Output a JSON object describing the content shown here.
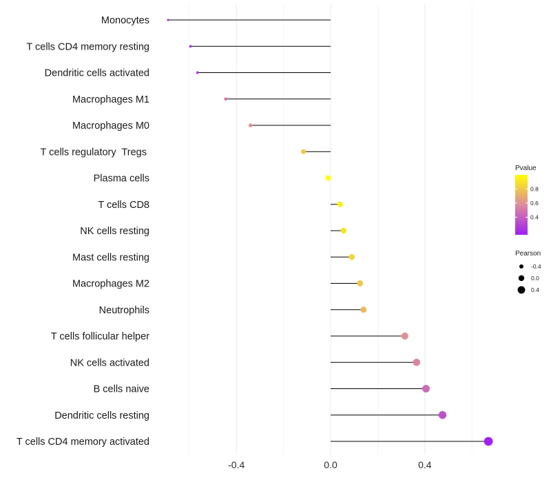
{
  "chart_data": {
    "type": "lollipop",
    "categories": [
      "Monocytes",
      "T cells CD4 memory resting",
      "Dendritic cells activated",
      "Macrophages M1",
      "Macrophages M0",
      "T cells regulatory  Tregs ",
      "Plasma cells",
      "T cells CD8",
      "NK cells resting",
      "Mast cells resting",
      "Macrophages M2",
      "Neutrophils",
      "T cells follicular helper",
      "NK cells activated",
      "B cells naive",
      "Dendritic cells resting",
      "T cells CD4 memory activated"
    ],
    "pearson": [
      -0.69,
      -0.595,
      -0.565,
      -0.445,
      -0.34,
      -0.115,
      -0.01,
      0.04,
      0.055,
      0.09,
      0.125,
      0.14,
      0.315,
      0.365,
      0.405,
      0.475,
      0.67
    ],
    "pvalue": [
      0.1,
      0.2,
      0.25,
      0.5,
      0.6,
      0.8,
      1.0,
      0.95,
      0.9,
      0.85,
      0.8,
      0.75,
      0.6,
      0.55,
      0.45,
      0.35,
      0.1
    ],
    "x_ticks": [
      -0.4,
      0.0,
      0.4
    ],
    "x_tick_labels": [
      "-0.4",
      "0.0",
      "0.4"
    ],
    "xlim": [
      -0.8,
      0.85
    ],
    "xlabel": "",
    "ylabel": "",
    "title": "",
    "grid": true,
    "legend_color": {
      "title": "Pvalue",
      "ticks": [
        0.8,
        0.6,
        0.4
      ],
      "tick_labels": [
        "0.8",
        "0.6",
        "0.4"
      ],
      "range": [
        0.15,
        1.0
      ],
      "low_color": "#a020f0",
      "mid_color": "#de8a9e",
      "high_color": "#ffff00",
      "placement": "right"
    },
    "legend_size": {
      "title": "Pearson",
      "values": [
        -0.4,
        0.0,
        0.4
      ],
      "labels": [
        "-0.4",
        "0.0",
        "0.4"
      ],
      "placement": "right"
    }
  }
}
